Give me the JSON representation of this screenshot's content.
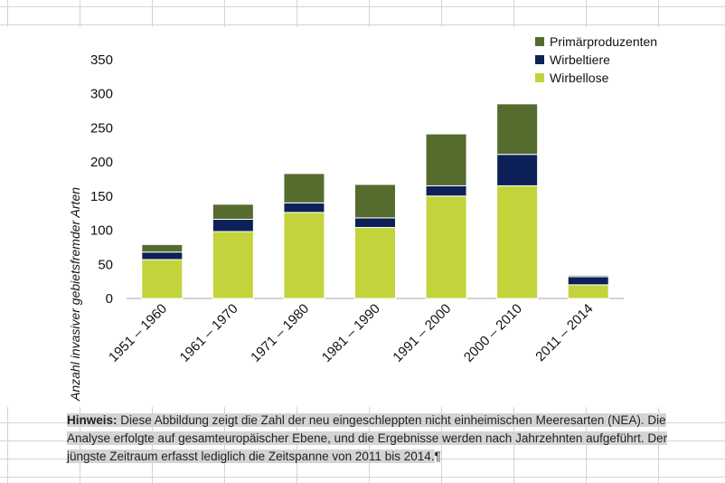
{
  "chart_data": {
    "type": "bar",
    "stacked": true,
    "categories": [
      "1951 – 1960",
      "1961 – 1970",
      "1971 – 1980",
      "1981 – 1990",
      "1991 – 2000",
      "2000 – 2010",
      "2011 – 2014"
    ],
    "series": [
      {
        "name": "Wirbellose",
        "color": "#c3d33b",
        "values": [
          57,
          98,
          126,
          104,
          150,
          165,
          20
        ]
      },
      {
        "name": "Wirbeltiere",
        "color": "#0d2158",
        "values": [
          11,
          18,
          14,
          14,
          15,
          46,
          12
        ]
      },
      {
        "name": "Primärproduzenten",
        "color": "#566b2e",
        "values": [
          11,
          22,
          43,
          49,
          76,
          74,
          2
        ]
      }
    ],
    "legend_order": [
      "Primärproduzenten",
      "Wirbeltiere",
      "Wirbellose"
    ],
    "legend_position": "top-right",
    "yticks": [
      "0",
      "50",
      "100",
      "150",
      "200",
      "250",
      "300",
      "350"
    ],
    "ylim": [
      0,
      350
    ],
    "ylabel": "Anzahl invasiver gebietsfremder Arten",
    "xlabel": "",
    "title": "",
    "grid": false
  },
  "note": {
    "label": "Hinweis:",
    "text": " Diese Abbildung zeigt die Zahl der neu eingeschleppten nicht einheimischen Meeresarten (NEA). Die Analyse erfolgte auf gesamteuropäischer Ebene, und die Ergebnisse werden nach Jahrzehnten aufgeführt. Der jüngste Zeitraum erfasst lediglich die Zeitspanne von 2011  bis 2014.",
    "pilcrow": "¶"
  }
}
